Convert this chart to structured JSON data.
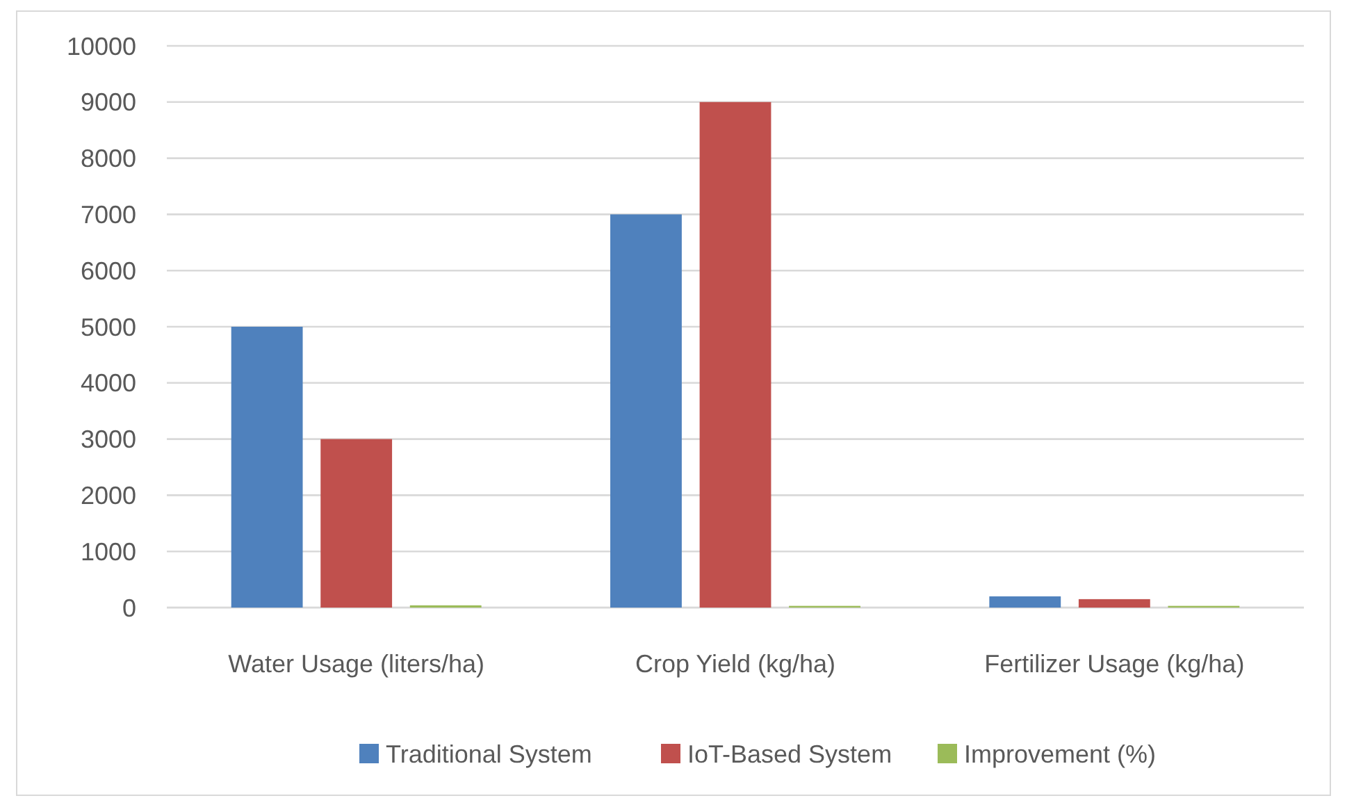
{
  "chart_data": {
    "type": "bar",
    "categories": [
      "Water Usage (liters/ha)",
      "Crop Yield (kg/ha)",
      "Fertilizer Usage (kg/ha)"
    ],
    "series": [
      {
        "name": "Traditional System",
        "color": "#4f81bd",
        "values": [
          5000,
          7000,
          200
        ]
      },
      {
        "name": "IoT-Based System",
        "color": "#c0504d",
        "values": [
          3000,
          9000,
          150
        ]
      },
      {
        "name": "Improvement (%)",
        "color": "#9bbb59",
        "values": [
          40,
          30,
          30
        ]
      }
    ],
    "ylim": [
      0,
      10000
    ],
    "yticks": [
      0,
      1000,
      2000,
      3000,
      4000,
      5000,
      6000,
      7000,
      8000,
      9000,
      10000
    ],
    "grid": "y",
    "legend": "bottom"
  }
}
